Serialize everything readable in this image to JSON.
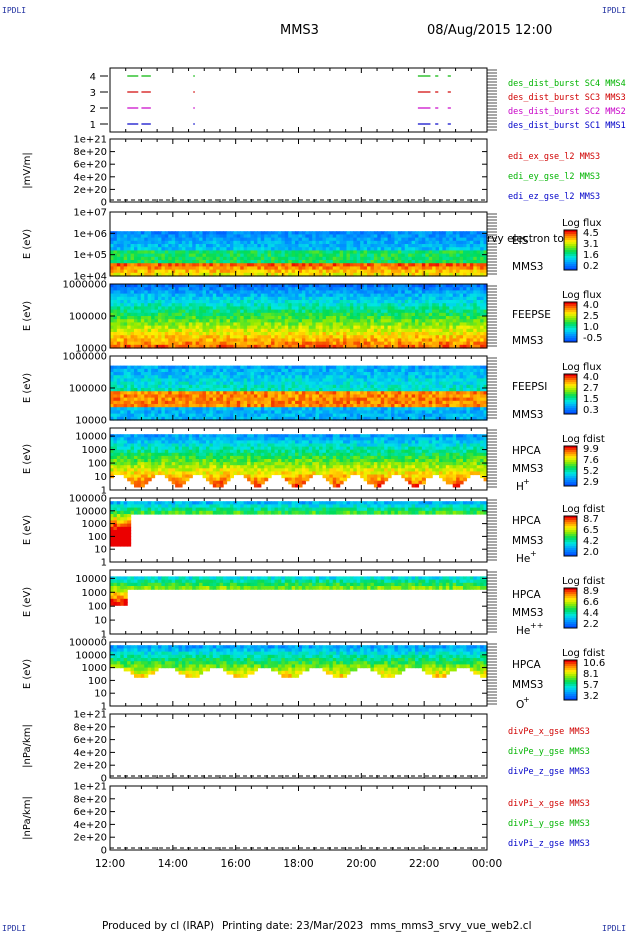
{
  "header": {
    "corner_label": "IPDLI",
    "spacecraft": "MMS3",
    "datetime": "08/Aug/2015 12:00"
  },
  "footer": {
    "produced_by": "Produced by cl (IRAP)",
    "printing_date": "Printing date: 23/Mar/2023",
    "script_name": "mms_mms3_srvy_vue_web2.cl"
  },
  "colors": {
    "sc1": "#0000c8",
    "sc2": "#c800c8",
    "sc3": "#d00000",
    "sc4": "#00b400",
    "x": "#d00000",
    "y": "#00b400",
    "z": "#0000c8"
  },
  "chart_data": [
    {
      "type": "line",
      "panel": "des_dist_burst availability",
      "yticks": [
        "1",
        "2",
        "3",
        "4"
      ],
      "ylim": [
        0.5,
        4.5
      ],
      "x_hours": [
        12,
        24
      ],
      "series": [
        {
          "name": "des_dist_burst SC1 MMS1",
          "color": "#0000c8",
          "level": 1,
          "intervals": [
            [
              12.55,
              12.9
            ],
            [
              13.0,
              13.3
            ],
            [
              14.65,
              14.7
            ],
            [
              21.8,
              22.2
            ],
            [
              22.35,
              22.45
            ],
            [
              22.75,
              22.85
            ]
          ]
        },
        {
          "name": "des_dist_burst SC2 MMS2",
          "color": "#c800c8",
          "level": 2,
          "intervals": [
            [
              12.55,
              12.9
            ],
            [
              13.0,
              13.3
            ],
            [
              14.65,
              14.7
            ],
            [
              21.8,
              22.2
            ],
            [
              22.35,
              22.45
            ],
            [
              22.75,
              22.85
            ]
          ]
        },
        {
          "name": "des_dist_burst SC3 MMS3",
          "color": "#d00000",
          "level": 3,
          "intervals": [
            [
              12.55,
              12.9
            ],
            [
              13.0,
              13.3
            ],
            [
              14.65,
              14.7
            ],
            [
              21.8,
              22.2
            ],
            [
              22.35,
              22.45
            ],
            [
              22.75,
              22.85
            ]
          ]
        },
        {
          "name": "des_dist_burst SC4 MMS4",
          "color": "#00b400",
          "level": 4,
          "intervals": [
            [
              12.55,
              12.9
            ],
            [
              13.0,
              13.3
            ],
            [
              14.65,
              14.7
            ],
            [
              21.8,
              22.2
            ],
            [
              22.35,
              22.45
            ],
            [
              22.75,
              22.85
            ]
          ]
        }
      ]
    },
    {
      "type": "line",
      "panel": "edi electric field",
      "ylabel": "|mV/m|",
      "yticks": [
        "0",
        "2e+20",
        "4e+20",
        "6e+20",
        "8e+20",
        "1e+21"
      ],
      "ylim": [
        0,
        1e+21
      ],
      "series": [
        {
          "name": "edi_ex_gse_l2 MMS3",
          "color": "#d00000"
        },
        {
          "name": "edi_ey_gse_l2 MMS3",
          "color": "#00b400"
        },
        {
          "name": "edi_ez_gse_l2 MMS3",
          "color": "#0000c8"
        }
      ]
    },
    {
      "type": "heatmap",
      "panel": "EIS",
      "ylabel": "E (eV)",
      "yticks": [
        "1e+04",
        "1e+05",
        "1e+06",
        "1e+07"
      ],
      "ylim": [
        10000.0,
        10000000.0
      ],
      "yscale": "log",
      "labels": [
        "EIS",
        "MMS3"
      ],
      "overlay_text": "rvy electron to",
      "colorbar": {
        "title": "Log flux",
        "ticks": [
          "4.5",
          "3.1",
          "1.6",
          "0.2"
        ]
      }
    },
    {
      "type": "heatmap",
      "panel": "FEEPSE",
      "ylabel": "E (eV)",
      "yticks": [
        "10000",
        "100000",
        "1000000"
      ],
      "ylim": [
        10000.0,
        1000000.0
      ],
      "yscale": "log",
      "labels": [
        "FEEPSE",
        "MMS3"
      ],
      "colorbar": {
        "title": "Log flux",
        "ticks": [
          "4.0",
          "2.5",
          "1.0",
          "-0.5"
        ]
      }
    },
    {
      "type": "heatmap",
      "panel": "FEEPSI",
      "ylabel": "E (eV)",
      "yticks": [
        "10000",
        "100000",
        "1000000"
      ],
      "ylim": [
        10000.0,
        1000000.0
      ],
      "yscale": "log",
      "labels": [
        "FEEPSI",
        "MMS3"
      ],
      "colorbar": {
        "title": "Log flux",
        "ticks": [
          "4.0",
          "2.7",
          "1.5",
          "0.3"
        ]
      }
    },
    {
      "type": "heatmap",
      "panel": "HPCA H+",
      "ylabel": "E (eV)",
      "yticks": [
        "1",
        "10",
        "100",
        "1000",
        "10000"
      ],
      "ylim": [
        1,
        40000
      ],
      "yscale": "log",
      "labels": [
        "HPCA",
        "MMS3",
        "H",
        "+"
      ],
      "colorbar": {
        "title": "Log fdist",
        "ticks": [
          "9.9",
          "7.6",
          "5.2",
          "2.9"
        ]
      }
    },
    {
      "type": "heatmap",
      "panel": "HPCA He+",
      "ylabel": "E (eV)",
      "yticks": [
        "1",
        "10",
        "100",
        "1000",
        "10000",
        "100000"
      ],
      "ylim": [
        1,
        100000
      ],
      "yscale": "log",
      "labels": [
        "HPCA",
        "MMS3",
        "He",
        "+"
      ],
      "colorbar": {
        "title": "Log fdist",
        "ticks": [
          "8.7",
          "6.5",
          "4.2",
          "2.0"
        ]
      }
    },
    {
      "type": "heatmap",
      "panel": "HPCA He++",
      "ylabel": "E (eV)",
      "yticks": [
        "1",
        "10",
        "100",
        "1000",
        "10000"
      ],
      "ylim": [
        1,
        40000
      ],
      "yscale": "log",
      "labels": [
        "HPCA",
        "MMS3",
        "He",
        "++"
      ],
      "colorbar": {
        "title": "Log fdist",
        "ticks": [
          "8.9",
          "6.6",
          "4.4",
          "2.2"
        ]
      }
    },
    {
      "type": "heatmap",
      "panel": "HPCA O+",
      "ylabel": "E (eV)",
      "yticks": [
        "1",
        "10",
        "100",
        "1000",
        "10000",
        "100000"
      ],
      "ylim": [
        1,
        100000
      ],
      "yscale": "log",
      "labels": [
        "HPCA",
        "MMS3",
        "O",
        "+"
      ],
      "colorbar": {
        "title": "Log fdist",
        "ticks": [
          "10.6",
          "8.1",
          "5.7",
          "3.2"
        ]
      }
    },
    {
      "type": "line",
      "panel": "divPe",
      "ylabel": "|nPa/km|",
      "yticks": [
        "0",
        "2e+20",
        "4e+20",
        "6e+20",
        "8e+20",
        "1e+21"
      ],
      "ylim": [
        0,
        1e+21
      ],
      "series": [
        {
          "name": "divPe_x_gse MMS3",
          "color": "#d00000"
        },
        {
          "name": "divPe_y_gse MMS3",
          "color": "#00b400"
        },
        {
          "name": "divPe_z_gse MMS3",
          "color": "#0000c8"
        }
      ]
    },
    {
      "type": "line",
      "panel": "divPi",
      "ylabel": "|nPa/km|",
      "yticks": [
        "0",
        "2e+20",
        "4e+20",
        "6e+20",
        "8e+20",
        "1e+21"
      ],
      "ylim": [
        0,
        1e+21
      ],
      "series": [
        {
          "name": "divPi_x_gse MMS3",
          "color": "#d00000"
        },
        {
          "name": "divPi_y_gse MMS3",
          "color": "#00b400"
        },
        {
          "name": "divPi_z_gse MMS3",
          "color": "#0000c8"
        }
      ]
    }
  ],
  "xaxis": {
    "ticks": [
      "12:00",
      "14:00",
      "16:00",
      "18:00",
      "20:00",
      "22:00",
      "00:00"
    ],
    "range_hours": [
      12,
      24
    ]
  }
}
